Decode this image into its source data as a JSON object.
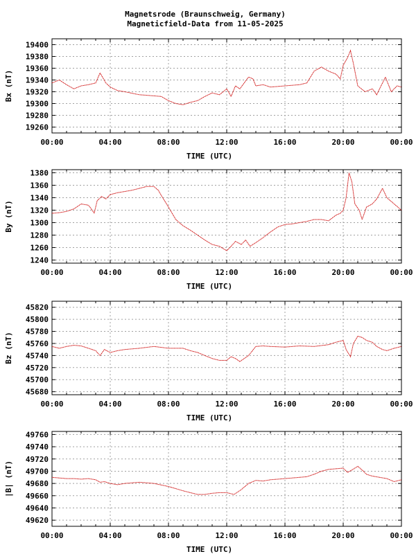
{
  "title_line1": "Magnetsrode (Braunschweig, Germany)",
  "title_line2": "Magneticfield-Data from 11-05-2025",
  "colors": {
    "series": "#cc0000",
    "grid": "#a0a0a0",
    "frame": "#000000"
  },
  "chart_data": [
    {
      "type": "line",
      "ylabel": "Bx (nT)",
      "xlabel": "TIME (UTC)",
      "xlim": [
        0,
        24
      ],
      "x_ticks": [
        "00:00",
        "04:00",
        "08:00",
        "12:00",
        "16:00",
        "20:00",
        "00:00"
      ],
      "ylim": [
        19250,
        19410
      ],
      "y_ticks": [
        19260,
        19280,
        19300,
        19320,
        19340,
        19360,
        19380,
        19400
      ],
      "grid": true,
      "x": [
        0,
        0.5,
        1,
        1.5,
        2,
        2.5,
        3,
        3.3,
        3.7,
        4,
        4.5,
        5,
        6,
        7,
        7.5,
        8,
        8.5,
        9,
        9.5,
        10,
        10.5,
        11,
        11.5,
        12,
        12.3,
        12.6,
        12.9,
        13.2,
        13.5,
        13.8,
        14,
        14.5,
        15,
        16,
        17,
        17.5,
        18,
        18.5,
        19,
        19.5,
        19.8,
        20,
        20.3,
        20.5,
        20.7,
        21,
        21.5,
        22,
        22.3,
        22.6,
        22.9,
        23.3,
        23.7,
        24
      ],
      "values": [
        19335,
        19340,
        19332,
        19325,
        19330,
        19332,
        19335,
        19352,
        19335,
        19328,
        19322,
        19320,
        19315,
        19313,
        19312,
        19305,
        19300,
        19298,
        19302,
        19305,
        19312,
        19318,
        19315,
        19325,
        19312,
        19330,
        19325,
        19335,
        19345,
        19342,
        19330,
        19332,
        19328,
        19330,
        19332,
        19335,
        19355,
        19362,
        19355,
        19350,
        19342,
        19365,
        19378,
        19390,
        19368,
        19330,
        19320,
        19325,
        19315,
        19330,
        19345,
        19320,
        19330,
        19328
      ]
    },
    {
      "type": "line",
      "ylabel": "By (nT)",
      "xlabel": "TIME (UTC)",
      "xlim": [
        0,
        24
      ],
      "x_ticks": [
        "00:00",
        "04:00",
        "08:00",
        "12:00",
        "16:00",
        "20:00",
        "00:00"
      ],
      "ylim": [
        1235,
        1385
      ],
      "y_ticks": [
        1240,
        1260,
        1280,
        1300,
        1320,
        1340,
        1360,
        1380
      ],
      "grid": true,
      "x": [
        0,
        0.5,
        1,
        1.5,
        2,
        2.5,
        2.7,
        2.9,
        3.1,
        3.4,
        3.7,
        4,
        4.5,
        5,
        5.5,
        6,
        6.5,
        7,
        7.3,
        7.6,
        8,
        8.5,
        9,
        9.5,
        10,
        10.5,
        11,
        11.5,
        12,
        12.3,
        12.6,
        13,
        13.3,
        13.6,
        14,
        14.5,
        15,
        15.5,
        16,
        16.5,
        17,
        17.5,
        18,
        18.5,
        19,
        19.5,
        19.8,
        20,
        20.2,
        20.4,
        20.6,
        20.8,
        21.1,
        21.3,
        21.6,
        22,
        22.3,
        22.7,
        23,
        23.5,
        24
      ],
      "values": [
        1315,
        1316,
        1318,
        1322,
        1330,
        1328,
        1322,
        1315,
        1335,
        1342,
        1338,
        1345,
        1348,
        1350,
        1352,
        1355,
        1358,
        1358,
        1352,
        1340,
        1325,
        1305,
        1295,
        1288,
        1280,
        1272,
        1265,
        1262,
        1255,
        1262,
        1270,
        1265,
        1272,
        1262,
        1268,
        1276,
        1285,
        1293,
        1297,
        1298,
        1300,
        1302,
        1305,
        1305,
        1303,
        1312,
        1315,
        1320,
        1340,
        1380,
        1365,
        1330,
        1320,
        1305,
        1325,
        1330,
        1338,
        1355,
        1340,
        1330,
        1320
      ]
    },
    {
      "type": "line",
      "ylabel": "Bz (nT)",
      "xlabel": "TIME (UTC)",
      "xlim": [
        0,
        24
      ],
      "x_ticks": [
        "00:00",
        "04:00",
        "08:00",
        "12:00",
        "16:00",
        "20:00",
        "00:00"
      ],
      "ylim": [
        45675,
        45830
      ],
      "y_ticks": [
        45680,
        45700,
        45720,
        45740,
        45760,
        45780,
        45800,
        45820
      ],
      "grid": true,
      "x": [
        0,
        0.5,
        1,
        1.5,
        2,
        2.5,
        3,
        3.3,
        3.6,
        4,
        4.5,
        5,
        6,
        7,
        8,
        9,
        9.5,
        10,
        10.5,
        11,
        11.5,
        12,
        12.3,
        12.6,
        12.9,
        13.2,
        13.5,
        14,
        14.5,
        15,
        16,
        17,
        18,
        19,
        19.5,
        20,
        20.2,
        20.5,
        20.7,
        21,
        21.3,
        21.6,
        22,
        22.3,
        22.7,
        23,
        23.5,
        24
      ],
      "values": [
        45755,
        45752,
        45755,
        45757,
        45756,
        45752,
        45748,
        45740,
        45750,
        45745,
        45748,
        45750,
        45752,
        45755,
        45752,
        45752,
        45748,
        45745,
        45740,
        45735,
        45732,
        45732,
        45738,
        45735,
        45730,
        45735,
        45740,
        45755,
        45756,
        45755,
        45754,
        45756,
        45755,
        45758,
        45762,
        45765,
        45750,
        45738,
        45760,
        45772,
        45770,
        45765,
        45762,
        45755,
        45750,
        45748,
        45752,
        45755
      ]
    },
    {
      "type": "line",
      "ylabel": "|B| (nT)",
      "xlabel": "TIME (UTC)",
      "xlim": [
        0,
        24
      ],
      "x_ticks": [
        "00:00",
        "04:00",
        "08:00",
        "12:00",
        "16:00",
        "20:00",
        "00:00"
      ],
      "ylim": [
        49610,
        49765
      ],
      "y_ticks": [
        49620,
        49640,
        49660,
        49680,
        49700,
        49720,
        49740,
        49760
      ],
      "grid": true,
      "x": [
        0,
        0.5,
        1,
        1.5,
        2,
        2.5,
        3,
        3.3,
        3.6,
        4,
        4.5,
        5,
        6,
        7,
        8,
        9,
        9.5,
        10,
        10.5,
        11,
        11.5,
        12,
        12.5,
        13,
        13.5,
        14,
        14.5,
        15,
        16,
        17,
        17.5,
        18,
        18.5,
        19,
        19.5,
        20,
        20.3,
        20.6,
        21,
        21.3,
        21.6,
        22,
        22.5,
        23,
        23.5,
        24
      ],
      "values": [
        49690,
        49689,
        49688,
        49688,
        49687,
        49688,
        49686,
        49682,
        49683,
        49680,
        49678,
        49680,
        49682,
        49680,
        49675,
        49668,
        49665,
        49662,
        49662,
        49664,
        49665,
        49665,
        49662,
        49670,
        49680,
        49685,
        49684,
        49686,
        49688,
        49690,
        49691,
        49695,
        49700,
        49703,
        49704,
        49705,
        49698,
        49702,
        49708,
        49702,
        49695,
        49692,
        49690,
        49688,
        49683,
        49686
      ]
    }
  ]
}
